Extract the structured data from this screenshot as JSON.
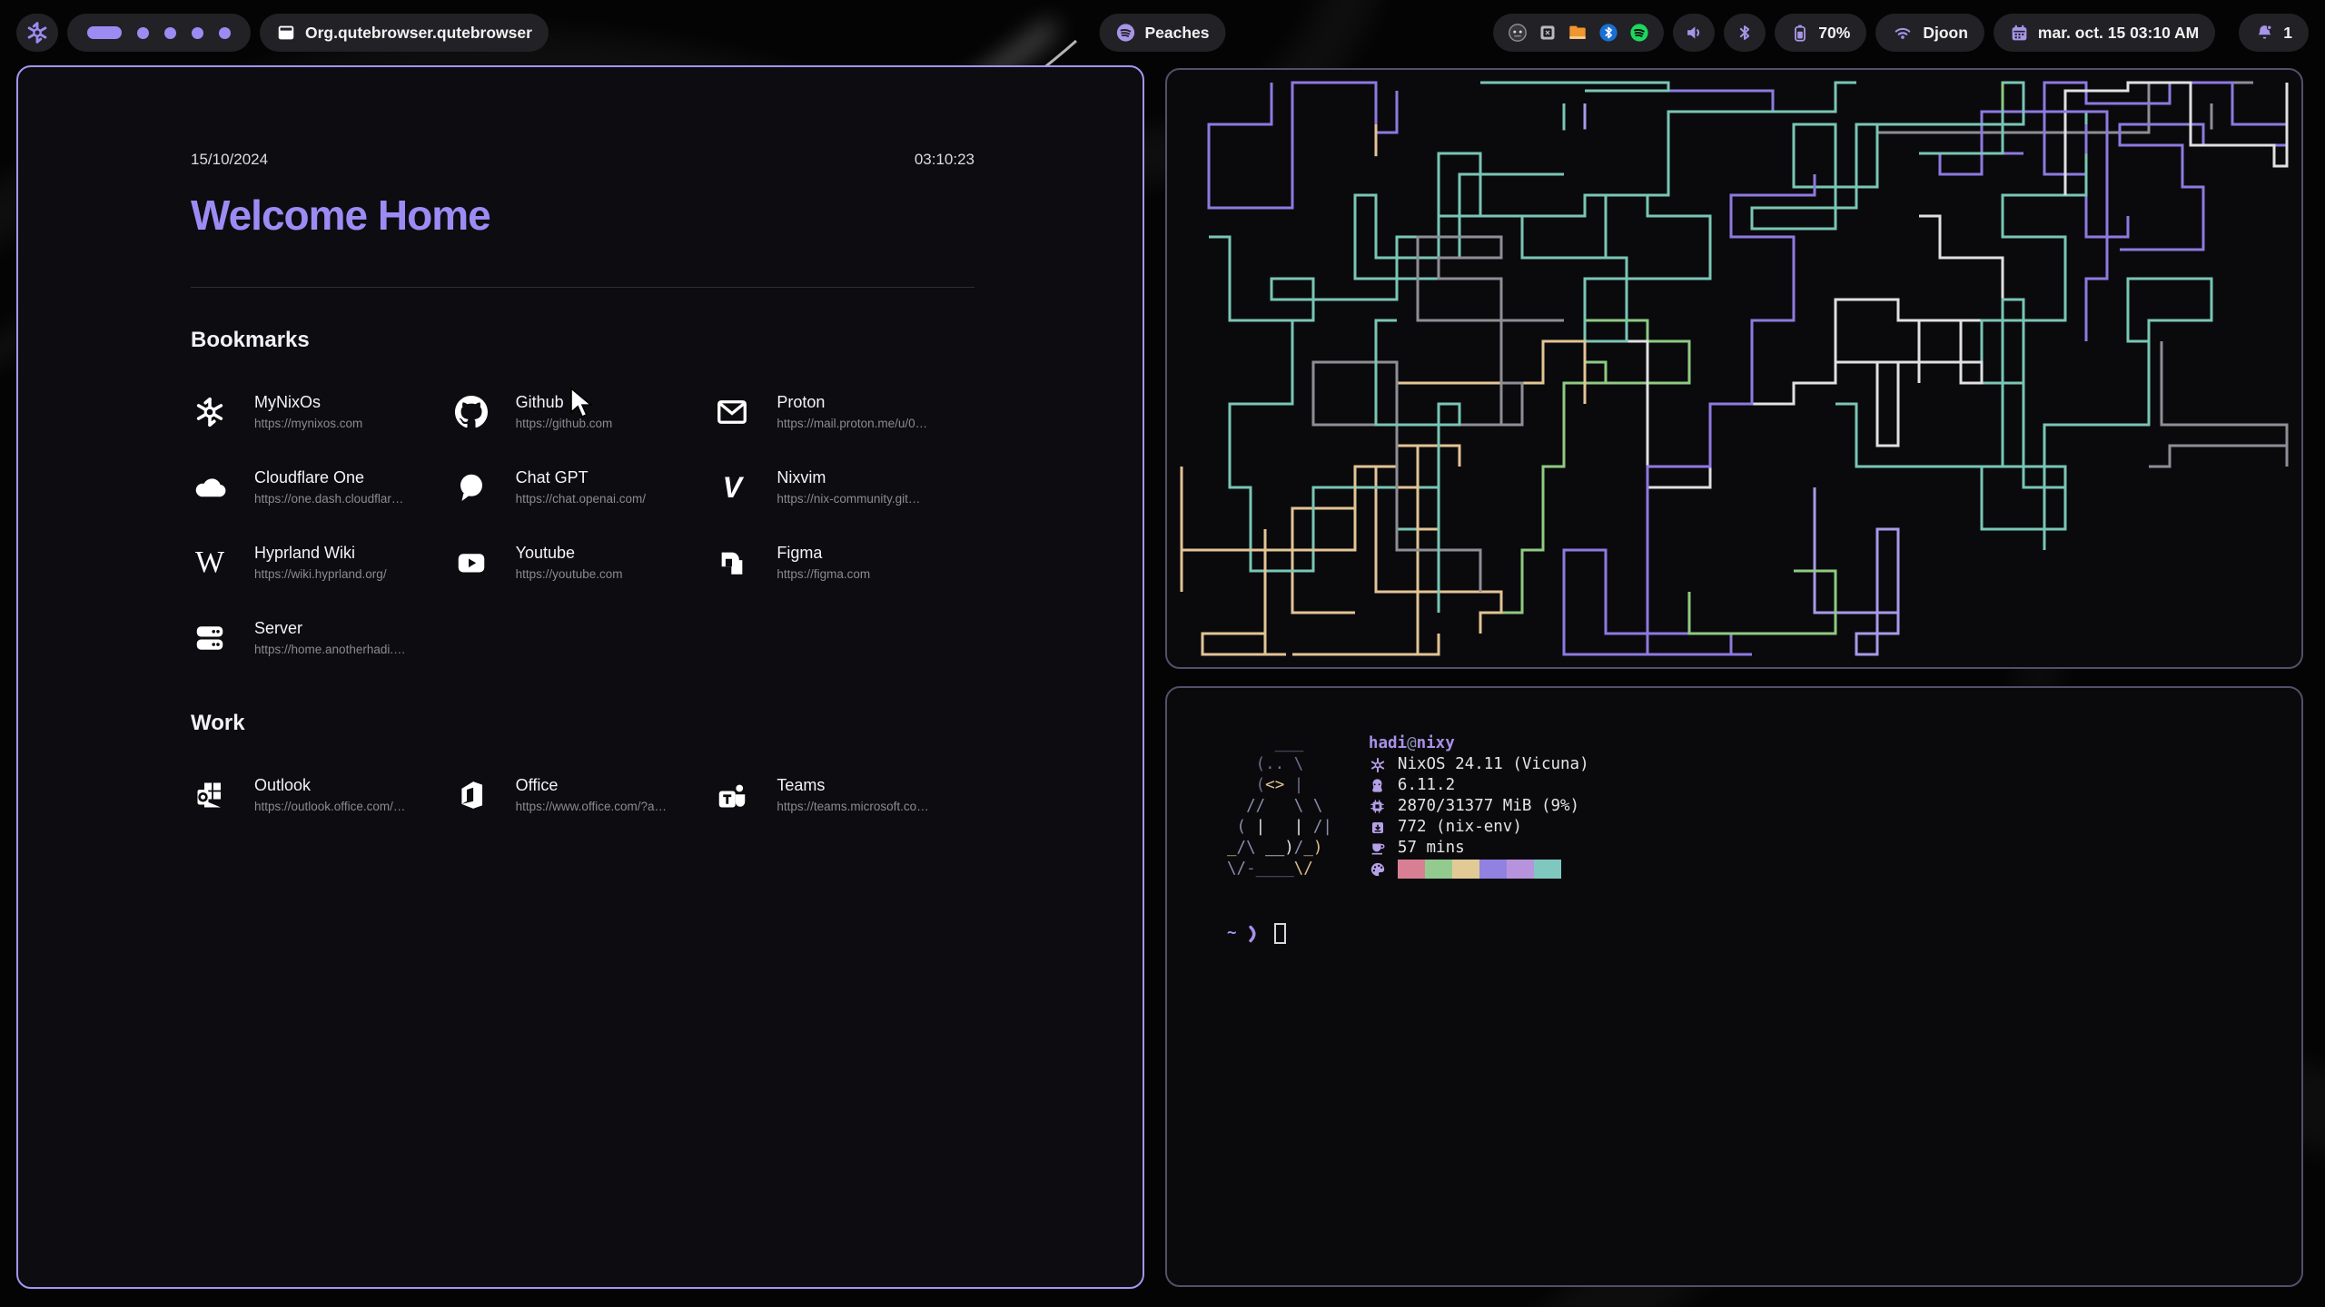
{
  "colors": {
    "accent": "#9d8bf4",
    "bar_pill_bg": "#222226",
    "active_border": "#a695f2",
    "inactive_border": "#50506a",
    "browser_bg": "#0d0c11",
    "terminal_bg": "#0a0a0d",
    "url_grey": "#8a8a90",
    "bluetooth_blue": "#1a6fd4",
    "spotify_green": "#1ed760",
    "folder_orange": "#f0962e"
  },
  "bar": {
    "launcher_icon": "nixos-logo",
    "workspaces": {
      "active_index": 0,
      "count": 5
    },
    "window_title": "Org.qutebrowser.qutebrowser",
    "music": {
      "label": "Peaches",
      "icon": "spotify"
    },
    "tray_icons": [
      "disc",
      "app-square",
      "folder",
      "bluetooth",
      "spotify"
    ],
    "battery": {
      "label": "70%"
    },
    "network": {
      "label": "Djoon"
    },
    "clock": {
      "label": "mar. oct. 15  03:10 AM"
    },
    "notifications": {
      "count": "1"
    }
  },
  "browser": {
    "date": "15/10/2024",
    "time": "03:10:23",
    "title": "Welcome Home",
    "sections": [
      {
        "heading": "Bookmarks",
        "items": [
          {
            "title": "MyNixOs",
            "url": "https://mynixos.com",
            "icon": "nixos"
          },
          {
            "title": "Github",
            "url": "https://github.com",
            "icon": "github"
          },
          {
            "title": "Proton",
            "url": "https://mail.proton.me/u/0…",
            "icon": "mail"
          },
          {
            "title": "Cloudflare One",
            "url": "https://one.dash.cloudflar…",
            "icon": "cloud"
          },
          {
            "title": "Chat GPT",
            "url": "https://chat.openai.com/",
            "icon": "chat-bubble"
          },
          {
            "title": "Nixvim",
            "url": "https://nix-community.git…",
            "icon": "vim"
          },
          {
            "title": "Hyprland Wiki",
            "url": "https://wiki.hyprland.org/",
            "icon": "wikipedia"
          },
          {
            "title": "Youtube",
            "url": "https://youtube.com",
            "icon": "youtube"
          },
          {
            "title": "Figma",
            "url": "https://figma.com",
            "icon": "figma"
          },
          {
            "title": "Server",
            "url": "https://home.anotherhadi.…",
            "icon": "server"
          }
        ]
      },
      {
        "heading": "Work",
        "items": [
          {
            "title": "Outlook",
            "url": "https://outlook.office.com/…",
            "icon": "outlook"
          },
          {
            "title": "Office",
            "url": "https://www.office.com/?a…",
            "icon": "office"
          },
          {
            "title": "Teams",
            "url": "https://teams.microsoft.co…",
            "icon": "teams"
          }
        ]
      }
    ]
  },
  "pipes": {
    "seed": 20241015,
    "walks": 26,
    "colors": [
      "#79c6b5",
      "#79c6b5",
      "#8f79e0",
      "#8f79e0",
      "#a99ae8",
      "#8fca82",
      "#e3c494",
      "#e0e0e3",
      "#8e8e96"
    ]
  },
  "fetch": {
    "user": "hadi",
    "at": "@",
    "host": "nixy",
    "rows": [
      {
        "icon": "nixos",
        "value": "NixOS 24.11 (Vicuna)"
      },
      {
        "icon": "kernel",
        "value": "6.11.2"
      },
      {
        "icon": "memory",
        "value": "2870/31377 MiB (9%)"
      },
      {
        "icon": "packages",
        "value": "772 (nix-env)"
      },
      {
        "icon": "uptime",
        "value": "57 mins"
      }
    ],
    "palette": [
      "#d97f93",
      "#93cb8f",
      "#e2ca96",
      "#9181e0",
      "#b793dd",
      "#80c8bf"
    ],
    "ascii_colors": {
      "dim": "#6f7190",
      "slate": "#8d8fae",
      "white": "#e6e6e6",
      "tan": "#dfc08e"
    },
    "ascii": [
      [
        [
          "     ___",
          "dim"
        ]
      ],
      [
        [
          "   (.. \\",
          "dim"
        ]
      ],
      [
        [
          "   (",
          "dim"
        ],
        [
          "<>",
          "tan"
        ],
        [
          " |",
          "dim"
        ]
      ],
      [
        [
          "  //   \\ \\",
          "slate"
        ]
      ],
      [
        [
          " ( ",
          "slate"
        ],
        [
          "|   |",
          "white"
        ],
        [
          " /|",
          "slate"
        ]
      ],
      [
        [
          "_",
          "tan"
        ],
        [
          "/\\ ",
          "slate"
        ],
        [
          "__)",
          "white"
        ],
        [
          "/",
          "slate"
        ],
        [
          "_)",
          "tan"
        ]
      ],
      [
        [
          "\\/",
          "slate"
        ],
        [
          "-____",
          "dim"
        ],
        [
          "\\/",
          "tan"
        ]
      ]
    ],
    "prompt": {
      "cwd": "~",
      "symbol": "❯"
    }
  }
}
